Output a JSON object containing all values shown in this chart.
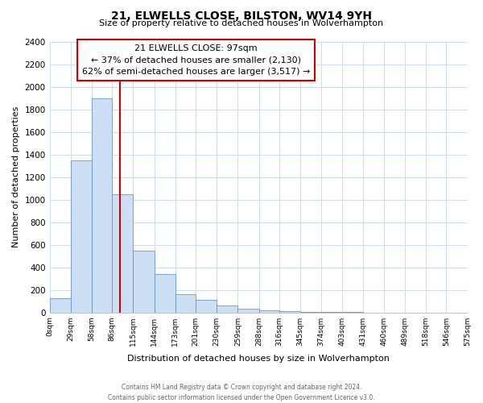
{
  "title": "21, ELWELLS CLOSE, BILSTON, WV14 9YH",
  "subtitle": "Size of property relative to detached houses in Wolverhampton",
  "xlabel": "Distribution of detached houses by size in Wolverhampton",
  "ylabel": "Number of detached properties",
  "bar_color": "#ccdff5",
  "bar_edge_color": "#6699cc",
  "vline_x": 97,
  "vline_color": "#cc0000",
  "bin_edges": [
    0,
    29,
    58,
    86,
    115,
    144,
    173,
    201,
    230,
    259,
    288,
    316,
    345,
    374,
    403,
    431,
    460,
    489,
    518,
    546,
    575
  ],
  "bar_heights": [
    125,
    1350,
    1900,
    1050,
    550,
    340,
    160,
    110,
    60,
    30,
    20,
    10,
    5,
    3,
    2,
    1,
    1,
    0,
    1,
    0
  ],
  "ylim": [
    0,
    2400
  ],
  "yticks": [
    0,
    200,
    400,
    600,
    800,
    1000,
    1200,
    1400,
    1600,
    1800,
    2000,
    2200,
    2400
  ],
  "xtick_labels": [
    "0sqm",
    "29sqm",
    "58sqm",
    "86sqm",
    "115sqm",
    "144sqm",
    "173sqm",
    "201sqm",
    "230sqm",
    "259sqm",
    "288sqm",
    "316sqm",
    "345sqm",
    "374sqm",
    "403sqm",
    "431sqm",
    "460sqm",
    "489sqm",
    "518sqm",
    "546sqm",
    "575sqm"
  ],
  "annotation_title": "21 ELWELLS CLOSE: 97sqm",
  "annotation_line1": "← 37% of detached houses are smaller (2,130)",
  "annotation_line2": "62% of semi-detached houses are larger (3,517) →",
  "annotation_box_color": "#ffffff",
  "annotation_box_edge": "#cc0000",
  "footer_line1": "Contains HM Land Registry data © Crown copyright and database right 2024.",
  "footer_line2": "Contains public sector information licensed under the Open Government Licence v3.0.",
  "background_color": "#ffffff",
  "grid_color": "#ccddee"
}
